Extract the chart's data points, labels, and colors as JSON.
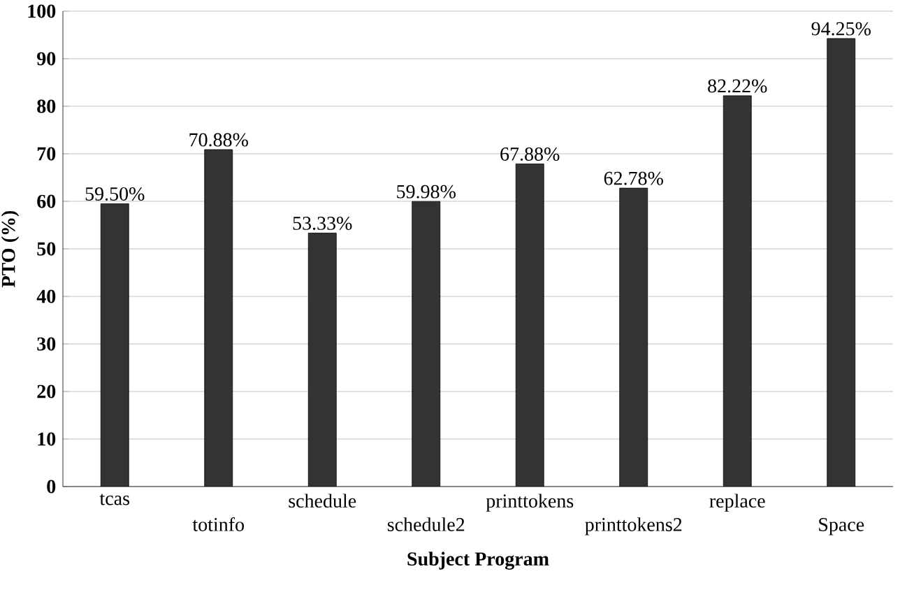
{
  "chart_data": {
    "type": "bar",
    "xlabel": "Subject Program",
    "ylabel": "PTO (%)",
    "categories": [
      "tcas",
      "totinfo",
      "schedule",
      "schedule2",
      "printtokens",
      "printtokens2",
      "replace",
      "Space"
    ],
    "values": [
      59.5,
      70.88,
      53.33,
      59.98,
      67.88,
      62.78,
      82.22,
      94.25
    ],
    "value_labels": [
      "59.50%",
      "70.88%",
      "53.33%",
      "59.98%",
      "67.88%",
      "62.78%",
      "82.22%",
      "94.25%"
    ],
    "color": "#333333",
    "ylim": [
      0,
      100
    ],
    "yticks": [
      0,
      10,
      20,
      30,
      40,
      50,
      60,
      70,
      80,
      90,
      100
    ],
    "grid": "y"
  }
}
